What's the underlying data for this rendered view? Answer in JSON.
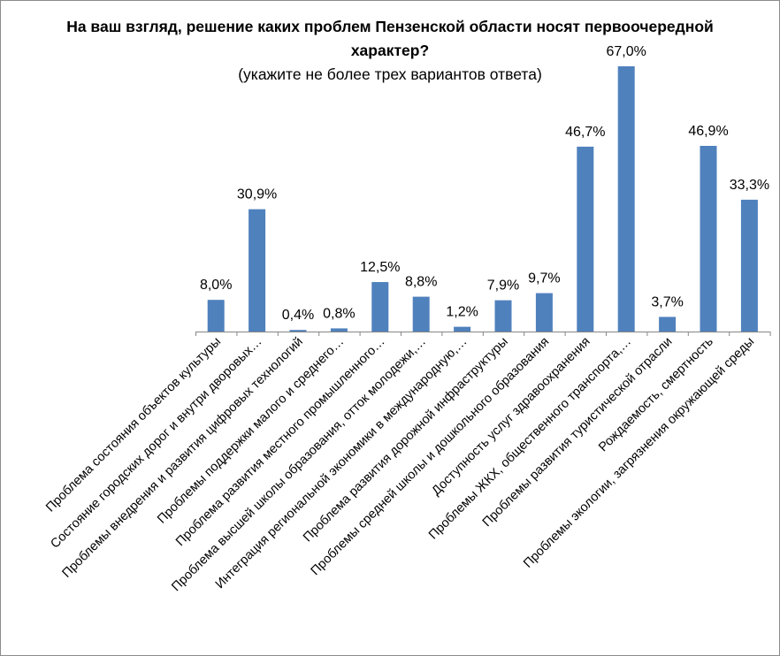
{
  "chart_data": {
    "type": "bar",
    "title": "На ваш взгляд, решение каких проблем Пензенской области носят первоочередной характер?",
    "subtitle": "(укажите не более трех вариантов ответа)",
    "categories": [
      "Проблема состояния объектов культуры",
      "Состояние городских дорог и внутри дворовых…",
      "Проблемы внедрения и развития цифровых технологий",
      "Проблемы поддержки малого и среднего…",
      "Проблема развития местного промышленного…",
      "Проблема высшей школы образования, отток молодежи,…",
      "Интеграция региональной экономики в международную,…",
      "Проблема развития дорожной инфраструктуры",
      "Проблемы средней школы и дошкольного образования",
      "Доступность услуг здравоохранения",
      "Проблемы ЖКХ, общественного транспорта,…",
      "Проблемы развития туристической отрасли",
      "Рождаемость, смертность",
      "Проблемы экологии, загрязнения окружающей среды"
    ],
    "values": [
      8.0,
      30.9,
      0.4,
      0.8,
      12.5,
      8.8,
      1.2,
      7.9,
      9.7,
      46.7,
      67.0,
      3.7,
      46.9,
      33.3
    ],
    "value_labels": [
      "8,0%",
      "30,9%",
      "0,4%",
      "0,8%",
      "12,5%",
      "8,8%",
      "1,2%",
      "7,9%",
      "9,7%",
      "46,7%",
      "67,0%",
      "3,7%",
      "46,9%",
      "33,3%"
    ],
    "ylim": [
      0,
      70
    ],
    "xlabel": "",
    "ylabel": "",
    "grid": false,
    "legend": "none",
    "bar_color": "#4f81bd",
    "axis_color": "#868686"
  }
}
